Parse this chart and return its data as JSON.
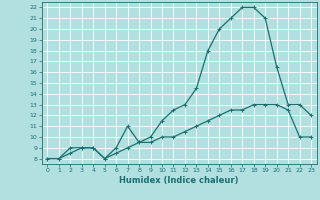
{
  "xlabel": "Humidex (Indice chaleur)",
  "background_color": "#b2e0e0",
  "grid_color": "#ffffff",
  "line_color": "#1a7070",
  "xlim": [
    -0.5,
    23.5
  ],
  "ylim": [
    7.5,
    22.5
  ],
  "xticks": [
    0,
    1,
    2,
    3,
    4,
    5,
    6,
    7,
    8,
    9,
    10,
    11,
    12,
    13,
    14,
    15,
    16,
    17,
    18,
    19,
    20,
    21,
    22,
    23
  ],
  "yticks": [
    8,
    9,
    10,
    11,
    12,
    13,
    14,
    15,
    16,
    17,
    18,
    19,
    20,
    21,
    22
  ],
  "line1_x": [
    0,
    1,
    2,
    3,
    4,
    5,
    6,
    7,
    8,
    9,
    10,
    11,
    12,
    13,
    14,
    15,
    16,
    17,
    18,
    19,
    20,
    21,
    22,
    23
  ],
  "line1_y": [
    8,
    8,
    9,
    9,
    9,
    8,
    9,
    11,
    9.5,
    10,
    11.5,
    12.5,
    13,
    14.5,
    18,
    20,
    21,
    22,
    22,
    21,
    16.5,
    13,
    13,
    12
  ],
  "line2_x": [
    0,
    1,
    2,
    3,
    4,
    5,
    6,
    7,
    8,
    9,
    10,
    11,
    12,
    13,
    14,
    15,
    16,
    17,
    18,
    19,
    20,
    21,
    22,
    23
  ],
  "line2_y": [
    8,
    8,
    8.5,
    9,
    9,
    8,
    8.5,
    9,
    9.5,
    9.5,
    10,
    10,
    10.5,
    11,
    11.5,
    12,
    12.5,
    12.5,
    13,
    13,
    13,
    12.5,
    10,
    10
  ],
  "marker_size": 2.5,
  "line_width": 0.9,
  "tick_fontsize": 4.5,
  "xlabel_fontsize": 6.0
}
